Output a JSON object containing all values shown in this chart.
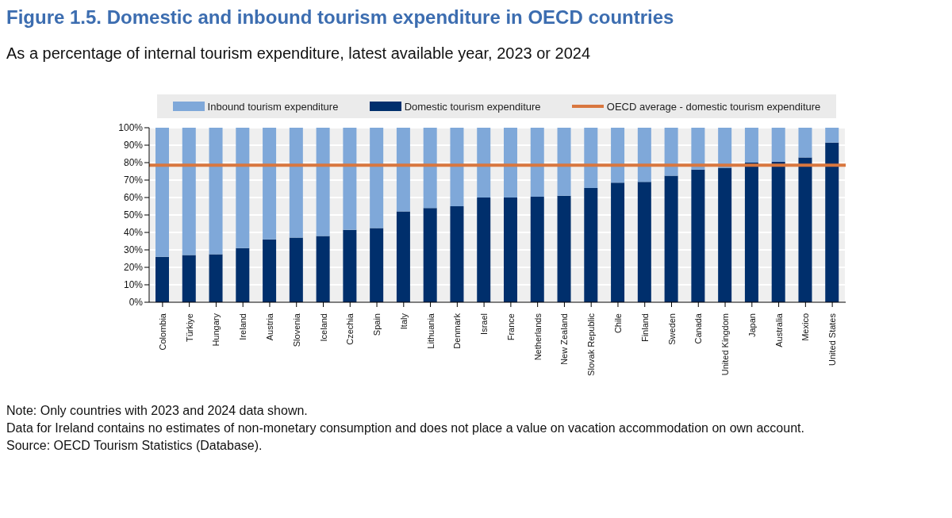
{
  "chart_data": {
    "type": "bar",
    "title": "Figure 1.5. Domestic and inbound tourism expenditure in OECD countries",
    "subtitle": "As a percentage of internal tourism expenditure, latest available year, 2023 or 2024",
    "categories": [
      "Colombia",
      "Türkiye",
      "Hungary",
      "Ireland",
      "Austria",
      "Slovenia",
      "Iceland",
      "Czechia",
      "Spain",
      "Italy",
      "Lithuania",
      "Denmark",
      "Israel",
      "France",
      "Netherlands",
      "New Zealand",
      "Slovak Republic",
      "Chile",
      "Finland",
      "Sweden",
      "Canada",
      "United Kingdom",
      "Japan",
      "Australia",
      "Mexico",
      "United States"
    ],
    "stacked": true,
    "series": [
      {
        "name": "Domestic tourism expenditure",
        "color": "#002f6c",
        "values": [
          26,
          27,
          27.5,
          31,
          36,
          37,
          38,
          41.5,
          42.5,
          52,
          54,
          55,
          60,
          60,
          60.5,
          61,
          65.5,
          68.5,
          69,
          72.5,
          76,
          77,
          80,
          80.5,
          83,
          91.5
        ]
      },
      {
        "name": "Inbound tourism expenditure",
        "color": "#7fa8d9",
        "values": [
          74,
          73,
          72.5,
          69,
          64,
          63,
          62,
          58.5,
          57.5,
          48,
          46,
          45,
          40,
          40,
          39.5,
          39,
          34.5,
          31.5,
          31,
          27.5,
          24,
          23,
          20,
          19.5,
          17,
          8.5
        ]
      }
    ],
    "ref_lines": [
      {
        "axis": "y",
        "value": 78.5,
        "label": "OECD average - domestic tourism expenditure",
        "color": "#d9773f"
      }
    ],
    "ylim": [
      0,
      100
    ],
    "yticks": [
      {
        "value": 0,
        "label": "0%"
      },
      {
        "value": 10,
        "label": "10%"
      },
      {
        "value": 20,
        "label": "20%"
      },
      {
        "value": 30,
        "label": "30%"
      },
      {
        "value": 40,
        "label": "40%"
      },
      {
        "value": 50,
        "label": "50%"
      },
      {
        "value": 60,
        "label": "60%"
      },
      {
        "value": 70,
        "label": "70%"
      },
      {
        "value": 80,
        "label": "80%"
      },
      {
        "value": 90,
        "label": "90%"
      },
      {
        "value": 100,
        "label": "100%"
      }
    ],
    "grid": true,
    "legend": "top",
    "annotations": [
      "Note: Only countries with 2023 and 2024 data shown.",
      "Data for Ireland contains no estimates of non-monetary consumption and does not place a value on vacation accommodation on own account.",
      "Source: OECD Tourism Statistics (Database)."
    ]
  }
}
